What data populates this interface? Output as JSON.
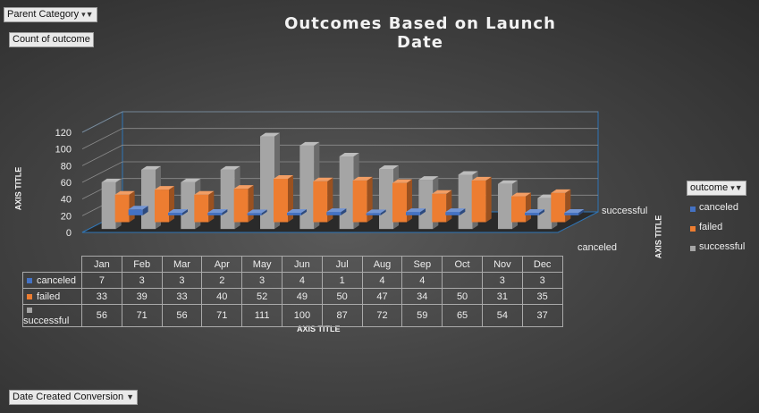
{
  "filters": {
    "parent_category": "Parent Category",
    "count_of_outcome": "Count of outcome",
    "outcome_legend_title": "outcome",
    "date_created": "Date Created Conversion"
  },
  "colors": {
    "canceled": "#4472c4",
    "failed": "#ed7d31",
    "successful": "#a5a5a5"
  },
  "chart_data": {
    "type": "bar",
    "title": "Outcomes  Based  on  Launch  Date",
    "xlabel": "AXIS TITLE",
    "ylabel": "AXIS TITLE",
    "zlabel": "AXIS TITLE",
    "categories": [
      "Jan",
      "Feb",
      "Mar",
      "Apr",
      "May",
      "Jun",
      "Jul",
      "Aug",
      "Sep",
      "Oct",
      "Nov",
      "Dec"
    ],
    "series": [
      {
        "name": "canceled",
        "values": [
          7,
          3,
          3,
          2,
          3,
          4,
          1,
          4,
          4,
          null,
          3,
          3
        ]
      },
      {
        "name": "failed",
        "values": [
          33,
          39,
          33,
          40,
          52,
          49,
          50,
          47,
          34,
          50,
          31,
          35
        ]
      },
      {
        "name": "successful",
        "values": [
          56,
          71,
          56,
          71,
          111,
          100,
          87,
          72,
          59,
          65,
          54,
          37
        ]
      }
    ],
    "yticks": [
      0,
      20,
      40,
      60,
      80,
      100,
      120
    ],
    "ylim": [
      0,
      120
    ],
    "depth_labels": [
      "successful",
      "canceled"
    ],
    "legend_position": "right",
    "grid": true,
    "data_table": true
  }
}
